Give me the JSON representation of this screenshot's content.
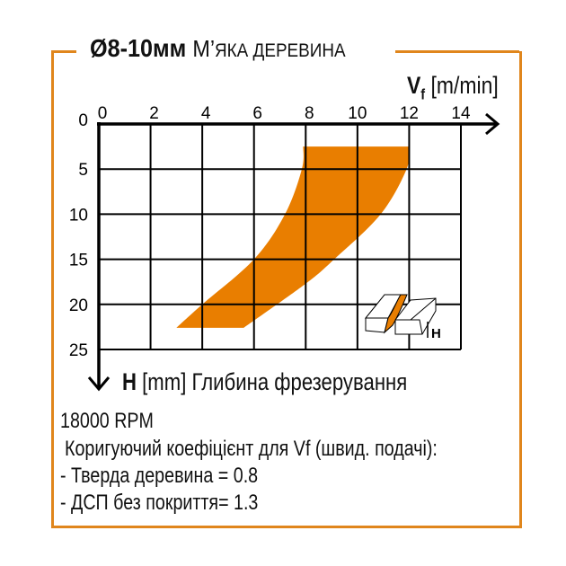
{
  "title": {
    "bold": "Ø8-10мм",
    "first_letter": "М’",
    "rest": "яка деревина"
  },
  "colors": {
    "accent": "#e97e00",
    "frame": "#e0861c"
  },
  "chart_data": {
    "type": "area",
    "title": "Ø8-10мм М’яка деревина",
    "xlabel": {
      "symbol": "V",
      "subscript": "f",
      "unit": "[m/min]"
    },
    "ylabel": {
      "symbol": "H",
      "unit": "[mm]",
      "text": "Глибина фрезерування"
    },
    "xlim": [
      0,
      14
    ],
    "ylim": [
      0,
      25
    ],
    "y_inverted": true,
    "x_ticks": [
      0,
      2,
      4,
      6,
      8,
      10,
      12,
      14
    ],
    "y_ticks": [
      0,
      5,
      10,
      15,
      20,
      25
    ],
    "grid": true,
    "region": {
      "left_edge": [
        {
          "x": 7.9,
          "y": 2.5
        },
        {
          "x": 7.85,
          "y": 5
        },
        {
          "x": 7.2,
          "y": 10
        },
        {
          "x": 6.0,
          "y": 15
        },
        {
          "x": 4.0,
          "y": 20
        },
        {
          "x": 3.0,
          "y": 22.6
        }
      ],
      "bottom": [
        {
          "x": 3.0,
          "y": 22.6
        },
        {
          "x": 5.6,
          "y": 22.6
        }
      ],
      "right_edge": [
        {
          "x": 5.6,
          "y": 22.6
        },
        {
          "x": 8.0,
          "y": 17.7
        },
        {
          "x": 9.1,
          "y": 15
        },
        {
          "x": 10.9,
          "y": 10
        },
        {
          "x": 11.9,
          "y": 5
        },
        {
          "x": 12.0,
          "y": 2.5
        }
      ]
    }
  },
  "notes": {
    "rpm": "18000 RPM",
    "factor_title": "Коригуючий коефіцієнт для Vf (швид. подачі):",
    "hardwood": "- Тверда деревина  = 0.8",
    "chipboard": "- ДСП без покриття= 1.3"
  },
  "inset_label": "H"
}
